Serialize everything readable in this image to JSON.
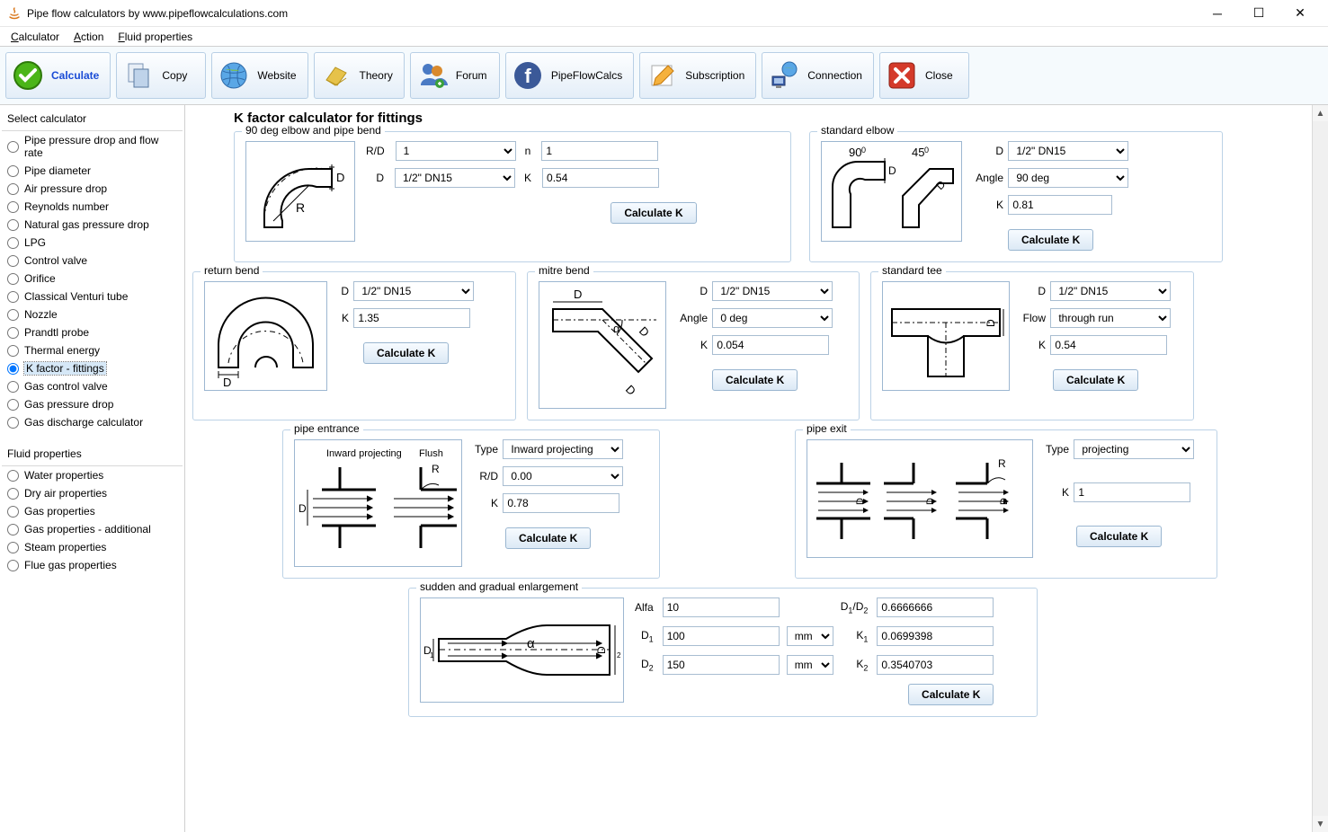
{
  "window": {
    "title": "Pipe flow calculators by www.pipeflowcalculations.com"
  },
  "menu": {
    "items": [
      "Calculator",
      "Action",
      "Fluid properties"
    ]
  },
  "toolbar": {
    "calculate": "Calculate",
    "copy": "Copy",
    "website": "Website",
    "theory": "Theory",
    "forum": "Forum",
    "pipeflowcalcs": "PipeFlowCalcs",
    "subscription": "Subscription",
    "connection": "Connection",
    "close": "Close"
  },
  "sidebar": {
    "select_header": "Select calculator",
    "fluid_header": "Fluid properties",
    "calculators": [
      "Pipe pressure drop and flow rate",
      "Pipe diameter",
      "Air pressure drop",
      "Reynolds number",
      "Natural gas pressure drop",
      "LPG",
      "Control valve",
      "Orifice",
      "Classical Venturi tube",
      "Nozzle",
      "Prandtl probe",
      "Thermal energy",
      "K factor - fittings",
      "Gas control valve",
      "Gas pressure drop",
      "Gas discharge calculator"
    ],
    "selected": "K factor - fittings",
    "fluids": [
      "Water properties",
      "Dry air properties",
      "Gas properties",
      "Gas properties - additional",
      "Steam properties",
      "Flue gas properties"
    ]
  },
  "page": {
    "title": "K factor calculator for fittings"
  },
  "elbow90": {
    "legend": "90 deg elbow and pipe bend",
    "rd_label": "R/D",
    "rd": "1",
    "n_label": "n",
    "n": "1",
    "d_label": "D",
    "d": "1/2\" DN15",
    "k_label": "K",
    "k": "0.54",
    "btn": "Calculate K"
  },
  "std_elbow": {
    "legend": "standard elbow",
    "d_label": "D",
    "d": "1/2\" DN15",
    "angle_label": "Angle",
    "angle": "90 deg",
    "k_label": "K",
    "k": "0.81",
    "btn": "Calculate K",
    "a90": "90",
    "a45": "45"
  },
  "return_bend": {
    "legend": "return bend",
    "d_label": "D",
    "d": "1/2\" DN15",
    "k_label": "K",
    "k": "1.35",
    "btn": "Calculate K"
  },
  "mitre": {
    "legend": "mitre bend",
    "d_label": "D",
    "d": "1/2\" DN15",
    "angle_label": "Angle",
    "angle": "0 deg",
    "k_label": "K",
    "k": "0.054",
    "btn": "Calculate K"
  },
  "tee": {
    "legend": "standard tee",
    "d_label": "D",
    "d": "1/2\" DN15",
    "flow_label": "Flow",
    "flow": "through run",
    "k_label": "K",
    "k": "0.54",
    "btn": "Calculate K"
  },
  "entrance": {
    "legend": "pipe entrance",
    "type_label": "Type",
    "type": "Inward projecting",
    "rd_label": "R/D",
    "rd": "0.00",
    "k_label": "K",
    "k": "0.78",
    "btn": "Calculate K",
    "diag_inward": "Inward projecting",
    "diag_flush": "Flush",
    "diag_r": "R"
  },
  "exit": {
    "legend": "pipe exit",
    "type_label": "Type",
    "type": "projecting",
    "k_label": "K",
    "k": "1",
    "btn": "Calculate K",
    "diag_r": "R"
  },
  "enlarge": {
    "legend": "sudden and gradual enlargement",
    "alfa_label": "Alfa",
    "alfa": "10",
    "d1_label": "D",
    "d1_sub": "1",
    "d1": "100",
    "d1_unit": "mm",
    "d2_label": "D",
    "d2_sub": "2",
    "d2": "150",
    "d2_unit": "mm",
    "ratio_label_a": "D",
    "ratio_label_b": "/D",
    "ratio_sub1": "1",
    "ratio_sub2": "2",
    "ratio": "0.6666666",
    "k1_label": "K",
    "k1_sub": "1",
    "k1": "0.0699398",
    "k2_label": "K",
    "k2_sub": "2",
    "k2": "0.3540703",
    "btn": "Calculate K"
  },
  "colors": {
    "border": "#bcd2e6",
    "btn_border": "#9ab6d0",
    "accent": "#1a4cd6"
  }
}
